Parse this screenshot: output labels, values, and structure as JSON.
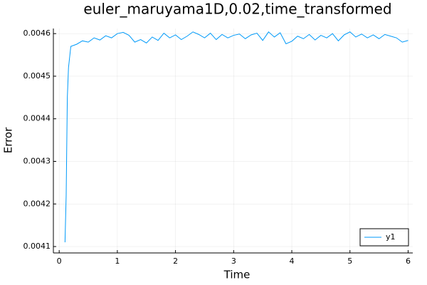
{
  "chart_data": {
    "type": "line",
    "title": "euler_maruyama1D,0.02,time_transformed",
    "xlabel": "Time",
    "ylabel": "Error",
    "x": [
      0.1,
      0.12,
      0.14,
      0.16,
      0.2,
      0.3,
      0.4,
      0.5,
      0.6,
      0.7,
      0.8,
      0.9,
      1.0,
      1.1,
      1.2,
      1.3,
      1.4,
      1.5,
      1.6,
      1.7,
      1.8,
      1.9,
      2.0,
      2.1,
      2.2,
      2.3,
      2.4,
      2.5,
      2.6,
      2.7,
      2.8,
      2.9,
      3.0,
      3.1,
      3.2,
      3.3,
      3.4,
      3.5,
      3.6,
      3.7,
      3.8,
      3.9,
      4.0,
      4.1,
      4.2,
      4.3,
      4.4,
      4.5,
      4.6,
      4.7,
      4.8,
      4.9,
      5.0,
      5.1,
      5.2,
      5.3,
      5.4,
      5.5,
      5.6,
      5.7,
      5.8,
      5.9,
      6.0
    ],
    "series": [
      {
        "name": "y1",
        "color": "#009af9",
        "values": [
          0.00411,
          0.00422,
          0.00445,
          0.00452,
          0.00457,
          0.004575,
          0.004583,
          0.00458,
          0.00459,
          0.004585,
          0.004595,
          0.00459,
          0.0046,
          0.004603,
          0.004596,
          0.00458,
          0.004586,
          0.004578,
          0.004592,
          0.004584,
          0.004601,
          0.00459,
          0.004597,
          0.004586,
          0.004594,
          0.004604,
          0.004598,
          0.00459,
          0.004601,
          0.004586,
          0.004598,
          0.00459,
          0.004596,
          0.004599,
          0.004588,
          0.004597,
          0.004601,
          0.004584,
          0.004604,
          0.004592,
          0.004602,
          0.004576,
          0.004582,
          0.004594,
          0.004588,
          0.004598,
          0.004585,
          0.004596,
          0.00459,
          0.0046,
          0.004583,
          0.004597,
          0.004604,
          0.004592,
          0.004599,
          0.00459,
          0.004597,
          0.004588,
          0.004598,
          0.004594,
          0.00459,
          0.00458,
          0.004584
        ]
      }
    ],
    "xlim": [
      -0.1,
      6.08
    ],
    "xticks": [
      0,
      1,
      2,
      3,
      4,
      5,
      6
    ],
    "ylim": [
      0.004085,
      0.004612
    ],
    "yticks": [
      0.0041,
      0.0042,
      0.0043,
      0.0044,
      0.0045,
      0.0046
    ],
    "grid": true,
    "legend": "lower right"
  }
}
